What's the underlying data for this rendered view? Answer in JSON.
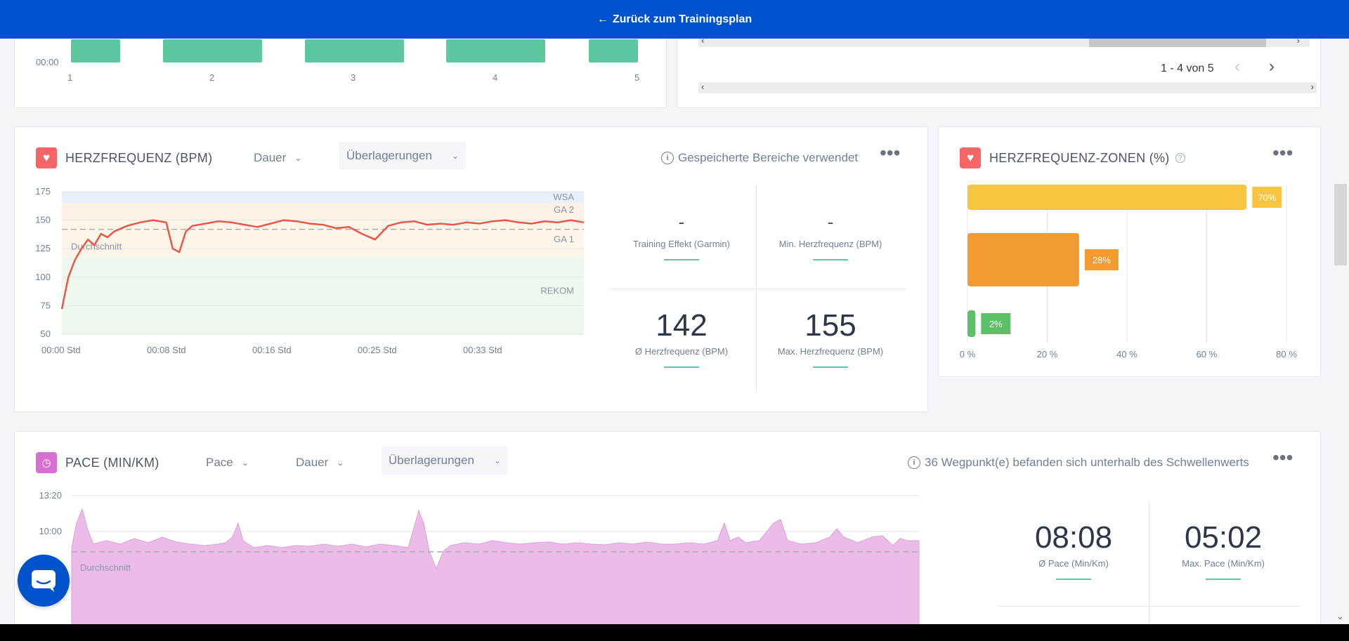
{
  "topbar": {
    "back_label": "Zurück zum Trainingsplan",
    "bg_color": "#0052cc"
  },
  "top_left_chart": {
    "y_label": "00:00",
    "x_ticks": [
      "1",
      "2",
      "3",
      "4",
      "5"
    ],
    "bar_color": "#5dc8a0"
  },
  "top_right_table": {
    "pagination": "1 - 4 von 5"
  },
  "hr_card": {
    "title": "HERZFREQUENZ (BPM)",
    "dropdown_dauer": "Dauer",
    "dropdown_overlay": "Überlagerungen",
    "info_text": "Gespeicherte Bereiche verwendet",
    "icon_color": "#f56565",
    "chart_data": {
      "type": "line",
      "y_ticks": [
        "175",
        "150",
        "125",
        "100",
        "75",
        "50"
      ],
      "x_ticks": [
        "00:00 Std",
        "00:08 Std",
        "00:16 Std",
        "00:25 Std",
        "00:33 Std"
      ],
      "zones": [
        "WSA",
        "GA 2",
        "GA 1",
        "REKOM"
      ],
      "avg_label": "Durchschnitt",
      "ylim": [
        50,
        175
      ],
      "line_color": "#e8574a",
      "avg_value": 142,
      "series": [
        {
          "x": [
            0,
            0.5,
            1,
            1.5,
            2,
            2.5,
            3,
            3.5,
            4,
            5,
            6,
            7,
            8,
            8.5,
            9,
            9.5,
            10,
            11,
            12,
            13,
            14,
            15,
            16,
            17,
            18,
            19,
            20,
            21,
            22,
            23,
            24,
            25,
            26,
            27,
            28,
            29,
            30,
            31,
            32,
            33,
            34,
            35,
            36,
            37,
            38,
            39,
            40
          ],
          "values": [
            72,
            100,
            115,
            125,
            133,
            128,
            138,
            135,
            140,
            145,
            148,
            150,
            148,
            125,
            122,
            140,
            145,
            147,
            149,
            148,
            146,
            144,
            147,
            150,
            149,
            147,
            146,
            143,
            144,
            138,
            133,
            145,
            148,
            149,
            146,
            147,
            146,
            148,
            147,
            149,
            150,
            148,
            147,
            149,
            148,
            150,
            148
          ]
        }
      ]
    },
    "stats": [
      {
        "value": "-",
        "label": "Training Effekt (Garmin)"
      },
      {
        "value": "-",
        "label": "Min. Herzfrequenz (BPM)"
      },
      {
        "value": "142",
        "label": "Ø Herzfrequenz (BPM)"
      },
      {
        "value": "155",
        "label": "Max. Herzfrequenz (BPM)"
      }
    ]
  },
  "zones_card": {
    "title": "HERZFREQUENZ-ZONEN (%)",
    "chart_data": {
      "type": "bar",
      "orientation": "horizontal",
      "values": [
        70,
        28,
        2
      ],
      "data_labels": [
        "70%",
        "28%",
        "2%"
      ],
      "colors": [
        "#f9c440",
        "#f29b30",
        "#5dc067"
      ],
      "x_ticks": [
        "0 %",
        "20 %",
        "40 %",
        "60 %",
        "80 %"
      ],
      "xlim": [
        0,
        80
      ]
    }
  },
  "pace_card": {
    "title": "PACE (MIN/KM)",
    "dropdown_pace": "Pace",
    "dropdown_dauer": "Dauer",
    "dropdown_overlay": "Überlagerungen",
    "info_text": "36 Wegpunkt(e) befanden sich unterhalb des Schwellenwerts",
    "icon_color": "#d96fd1",
    "chart_data": {
      "type": "area",
      "y_ticks": [
        "13:20",
        "10:00"
      ],
      "avg_label": "Durchschnitt",
      "fill_color": "#ecbce8"
    },
    "stats": [
      {
        "value": "08:08",
        "label": "Ø Pace (Min/Km)"
      },
      {
        "value": "05:02",
        "label": "Max. Pace (Min/Km)"
      }
    ]
  }
}
